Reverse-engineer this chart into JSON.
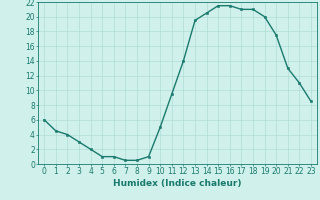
{
  "x": [
    0,
    1,
    2,
    3,
    4,
    5,
    6,
    7,
    8,
    9,
    10,
    11,
    12,
    13,
    14,
    15,
    16,
    17,
    18,
    19,
    20,
    21,
    22,
    23
  ],
  "y": [
    6,
    4.5,
    4,
    3,
    2,
    1,
    1,
    0.5,
    0.5,
    1,
    5,
    9.5,
    14,
    19.5,
    20.5,
    21.5,
    21.5,
    21,
    21,
    20,
    17.5,
    13,
    11,
    8.5
  ],
  "line_color": "#1a7a6e",
  "marker": "s",
  "marker_size": 2,
  "line_width": 1.0,
  "bg_color": "#cff0eb",
  "grid_color": "#b0ddd8",
  "xlabel": "Humidex (Indice chaleur)",
  "xlim": [
    -0.5,
    23.5
  ],
  "ylim": [
    0,
    22
  ],
  "yticks": [
    0,
    2,
    4,
    6,
    8,
    10,
    12,
    14,
    16,
    18,
    20,
    22
  ],
  "xticks": [
    0,
    1,
    2,
    3,
    4,
    5,
    6,
    7,
    8,
    9,
    10,
    11,
    12,
    13,
    14,
    15,
    16,
    17,
    18,
    19,
    20,
    21,
    22,
    23
  ],
  "tick_fontsize": 5.5,
  "xlabel_fontsize": 6.5
}
